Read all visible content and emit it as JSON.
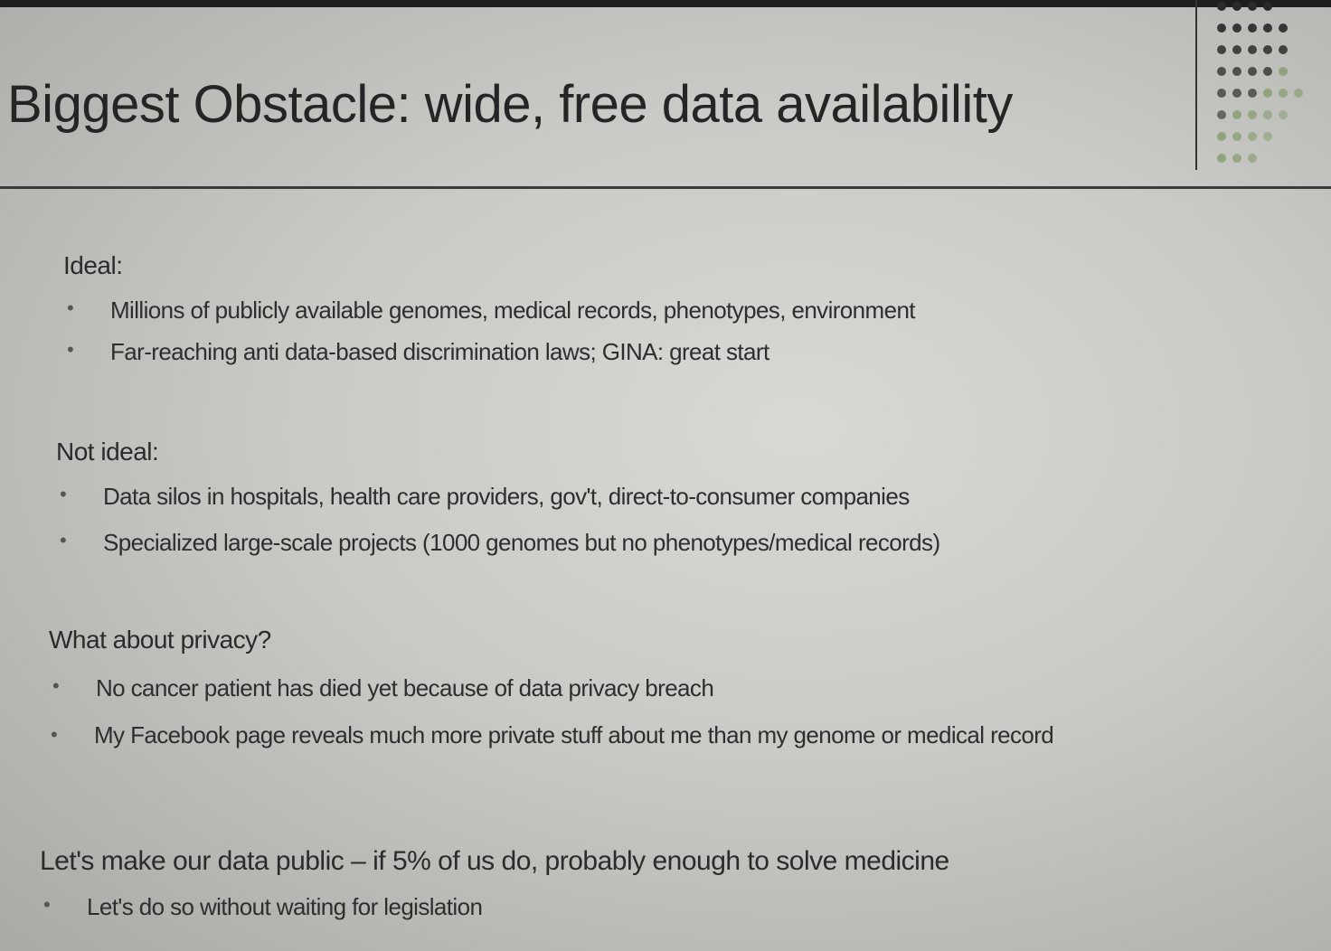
{
  "slide": {
    "title": "Biggest Obstacle: wide, free data availability",
    "sections": [
      {
        "heading": "Ideal:",
        "bullets": [
          "Millions of publicly available genomes, medical records, phenotypes, environment",
          "Far-reaching anti data-based discrimination laws; GINA: great start"
        ]
      },
      {
        "heading": "Not ideal:",
        "bullets": [
          "Data silos in hospitals, health care providers, gov't, direct-to-consumer companies",
          "Specialized large-scale projects (1000 genomes but  no phenotypes/medical records)"
        ]
      },
      {
        "heading": "What about privacy?",
        "bullets": [
          "No cancer patient has died yet because of data privacy breach",
          "My Facebook page reveals much more private stuff about me than my genome or medical record"
        ]
      },
      {
        "heading": "Let's make our data public – if 5% of us do, probably enough to solve medicine",
        "bullets": [
          "Let's do so without waiting for legislation"
        ]
      }
    ],
    "bullet_symbol": "•",
    "colors": {
      "background": "#d0d0cc",
      "text": "#2a2a2a",
      "rule": "#3a3a3a",
      "logo_dark": "#2a2a2a",
      "logo_green": "#7f9a66"
    }
  }
}
